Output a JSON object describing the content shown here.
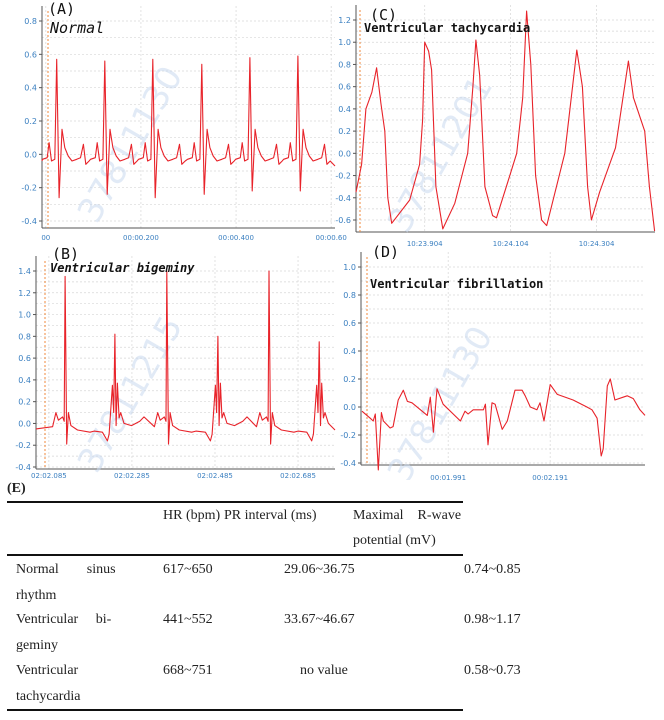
{
  "chart_data": [
    {
      "panel": "(A)",
      "title": "Normal",
      "type": "line",
      "color": "#e8232a",
      "ylim": [
        -0.4,
        0.8
      ],
      "xlim": [
        -0.008,
        0.608
      ],
      "yticks": [
        {
          "v": 0.8,
          "label": "0.8"
        },
        {
          "v": 0.6,
          "label": "0.6"
        },
        {
          "v": 0.4,
          "label": "0.4"
        },
        {
          "v": 0.2,
          "label": "0.2"
        },
        {
          "v": 0.0,
          "label": "0.0"
        },
        {
          "v": -0.2,
          "label": "-0.2"
        },
        {
          "v": -0.4,
          "label": "-0.4"
        }
      ],
      "xticks": [
        {
          "v": 0.0,
          "label": "00"
        },
        {
          "v": 0.2,
          "label": "00:00.200"
        },
        {
          "v": 0.4,
          "label": "00:00.400"
        },
        {
          "v": 0.6,
          "label": "00:00.60"
        }
      ],
      "watermark": "37811130",
      "beats": [
        {
          "t": 0.023,
          "r": 0.57,
          "s": -0.26
        },
        {
          "t": 0.124,
          "r": 0.56,
          "s": -0.24
        },
        {
          "t": 0.225,
          "r": 0.57,
          "s": -0.26
        },
        {
          "t": 0.328,
          "r": 0.54,
          "s": -0.24
        },
        {
          "t": 0.429,
          "r": 0.58,
          "s": -0.22
        },
        {
          "t": 0.53,
          "r": 0.59,
          "s": -0.22
        }
      ],
      "grid": true
    },
    {
      "panel": "(C)",
      "title": "Ventricular tachycardia",
      "type": "line",
      "color": "#e8232a",
      "ylim": [
        -0.6,
        1.2
      ],
      "xlim": [
        623.744,
        624.44
      ],
      "yticks": [
        {
          "v": 1.2,
          "label": "1.2"
        },
        {
          "v": 1.0,
          "label": "1.0"
        },
        {
          "v": 0.8,
          "label": "0.8"
        },
        {
          "v": 0.6,
          "label": "0.6"
        },
        {
          "v": 0.4,
          "label": "0.4"
        },
        {
          "v": 0.2,
          "label": "0.2"
        },
        {
          "v": 0.0,
          "label": "0.0"
        },
        {
          "v": -0.2,
          "label": "-0.2"
        },
        {
          "v": -0.4,
          "label": "-0.4"
        },
        {
          "v": -0.6,
          "label": "-0.6"
        }
      ],
      "xticks": [
        {
          "v": 623.904,
          "label": "10:23.904"
        },
        {
          "v": 624.104,
          "label": "10:24.104"
        },
        {
          "v": 624.304,
          "label": "10:24.304"
        }
      ],
      "watermark": "37811201",
      "points": [
        [
          623.744,
          -0.35
        ],
        [
          623.757,
          -0.1
        ],
        [
          623.767,
          0.4
        ],
        [
          623.781,
          0.55
        ],
        [
          623.792,
          0.77
        ],
        [
          623.802,
          0.45
        ],
        [
          623.811,
          0.2
        ],
        [
          623.818,
          -0.4
        ],
        [
          623.827,
          -0.63
        ],
        [
          623.869,
          -0.42
        ],
        [
          623.892,
          -0.1
        ],
        [
          623.899,
          0.3
        ],
        [
          623.904,
          1.0
        ],
        [
          623.913,
          0.92
        ],
        [
          623.92,
          0.75
        ],
        [
          623.93,
          -0.3
        ],
        [
          623.946,
          -0.68
        ],
        [
          623.974,
          -0.45
        ],
        [
          624.004,
          0.0
        ],
        [
          624.016,
          0.6
        ],
        [
          624.023,
          1.02
        ],
        [
          624.032,
          0.7
        ],
        [
          624.044,
          -0.3
        ],
        [
          624.062,
          -0.56
        ],
        [
          624.071,
          -0.58
        ],
        [
          624.102,
          -0.2
        ],
        [
          624.118,
          0.0
        ],
        [
          624.132,
          0.5
        ],
        [
          624.141,
          1.28
        ],
        [
          624.151,
          0.8
        ],
        [
          624.162,
          -0.2
        ],
        [
          624.176,
          -0.6
        ],
        [
          624.188,
          -0.65
        ],
        [
          624.23,
          0.0
        ],
        [
          624.258,
          0.93
        ],
        [
          624.271,
          0.6
        ],
        [
          624.283,
          -0.3
        ],
        [
          624.292,
          -0.6
        ],
        [
          624.311,
          -0.35
        ],
        [
          624.348,
          0.05
        ],
        [
          624.378,
          0.83
        ],
        [
          624.39,
          0.5
        ],
        [
          624.416,
          0.2
        ],
        [
          624.427,
          -0.3
        ],
        [
          624.439,
          -0.7
        ]
      ],
      "grid": true
    },
    {
      "panel": "(B)",
      "title": "Ventricular bigeminy",
      "type": "line",
      "color": "#e8232a",
      "ylim": [
        -0.4,
        1.4
      ],
      "xlim": [
        122.054,
        122.774
      ],
      "yticks": [
        {
          "v": 1.4,
          "label": "1.4"
        },
        {
          "v": 1.2,
          "label": "1.2"
        },
        {
          "v": 1.0,
          "label": "1.0"
        },
        {
          "v": 0.8,
          "label": "0.8"
        },
        {
          "v": 0.6,
          "label": "0.6"
        },
        {
          "v": 0.4,
          "label": "0.4"
        },
        {
          "v": 0.2,
          "label": "0.2"
        },
        {
          "v": 0.0,
          "label": "0.0"
        },
        {
          "v": -0.2,
          "label": "-0.2"
        },
        {
          "v": -0.4,
          "label": "-0.4"
        }
      ],
      "xticks": [
        {
          "v": 122.085,
          "label": "02:02.085"
        },
        {
          "v": 122.285,
          "label": "02:02.285"
        },
        {
          "v": 122.485,
          "label": "02:02.485"
        },
        {
          "v": 122.685,
          "label": "02:02.685"
        }
      ],
      "watermark": "37811215",
      "beats": [
        {
          "t": 122.124,
          "r": 1.35,
          "kind": "tall"
        },
        {
          "t": 122.244,
          "r": 0.82,
          "kind": "small"
        },
        {
          "t": 122.369,
          "r": 1.4,
          "kind": "tall"
        },
        {
          "t": 122.492,
          "r": 0.8,
          "kind": "small"
        },
        {
          "t": 122.615,
          "r": 1.4,
          "kind": "tall"
        },
        {
          "t": 122.736,
          "r": 0.75,
          "kind": "small"
        }
      ],
      "grid": true
    },
    {
      "panel": "(D)",
      "title": "Ventricular fibrillation",
      "type": "line",
      "color": "#e8232a",
      "ylim": [
        -0.4,
        1.0
      ],
      "xlim": [
        1.82,
        2.377
      ],
      "yticks": [
        {
          "v": 1.0,
          "label": "1.0"
        },
        {
          "v": 0.8,
          "label": "0.8"
        },
        {
          "v": 0.6,
          "label": "0.6"
        },
        {
          "v": 0.4,
          "label": "0.4"
        },
        {
          "v": 0.2,
          "label": "0.2"
        },
        {
          "v": 0.0,
          "label": "0.0"
        },
        {
          "v": -0.2,
          "label": "-0.2"
        },
        {
          "v": -0.4,
          "label": "-0.4"
        }
      ],
      "xticks": [
        {
          "v": 1.991,
          "label": "00:01.991"
        },
        {
          "v": 2.191,
          "label": "00:02.191"
        }
      ],
      "watermark": "37811130",
      "points": [
        [
          1.822,
          -0.03
        ],
        [
          1.838,
          -0.08
        ],
        [
          1.844,
          -0.1
        ],
        [
          1.848,
          -0.05
        ],
        [
          1.854,
          -0.45
        ],
        [
          1.86,
          -0.04
        ],
        [
          1.864,
          -0.1
        ],
        [
          1.877,
          -0.15
        ],
        [
          1.883,
          -0.14
        ],
        [
          1.893,
          0.05
        ],
        [
          1.903,
          0.12
        ],
        [
          1.911,
          0.04
        ],
        [
          1.92,
          0.03
        ],
        [
          1.95,
          -0.06
        ],
        [
          1.956,
          0.07
        ],
        [
          1.962,
          -0.18
        ],
        [
          1.969,
          0.13
        ],
        [
          1.981,
          0.02
        ],
        [
          2.015,
          -0.1
        ],
        [
          2.024,
          -0.03
        ],
        [
          2.03,
          -0.05
        ],
        [
          2.04,
          -0.02
        ],
        [
          2.06,
          -0.02
        ],
        [
          2.064,
          0.02
        ],
        [
          2.069,
          -0.27
        ],
        [
          2.077,
          0.03
        ],
        [
          2.083,
          0.02
        ],
        [
          2.097,
          -0.16
        ],
        [
          2.107,
          -0.1
        ],
        [
          2.122,
          0.12
        ],
        [
          2.136,
          0.12
        ],
        [
          2.142,
          0.08
        ],
        [
          2.152,
          0.0
        ],
        [
          2.165,
          -0.02
        ],
        [
          2.171,
          0.03
        ],
        [
          2.179,
          -0.1
        ],
        [
          2.191,
          0.16
        ],
        [
          2.205,
          0.09
        ],
        [
          2.236,
          0.05
        ],
        [
          2.263,
          0.0
        ],
        [
          2.273,
          -0.02
        ],
        [
          2.283,
          -0.08
        ],
        [
          2.291,
          -0.35
        ],
        [
          2.295,
          -0.3
        ],
        [
          2.303,
          0.15
        ],
        [
          2.309,
          0.2
        ],
        [
          2.318,
          0.05
        ],
        [
          2.334,
          0.07
        ],
        [
          2.342,
          0.08
        ],
        [
          2.354,
          0.06
        ],
        [
          2.367,
          -0.02
        ],
        [
          2.377,
          -0.06
        ]
      ],
      "grid": true
    }
  ],
  "table": {
    "label": "(E)",
    "headers": [
      "",
      "HR (bpm)",
      "PR interval (ms)",
      "Maximal    R-wave",
      "potential (mV)"
    ],
    "rows": [
      {
        "name1": "Normal        sinus",
        "name2": "rhythm",
        "hr": "617~650",
        "pr": "29.06~36.75",
        "r": "0.74~0.85"
      },
      {
        "name1": "Ventricular     bi-",
        "name2": "geminy",
        "hr": "441~552",
        "pr": "33.67~46.67",
        "r": "0.98~1.17"
      },
      {
        "name1": "Ventricular",
        "name2": "tachycardia",
        "hr": "668~751",
        "pr": "no value",
        "r": "0.58~0.73"
      }
    ]
  }
}
